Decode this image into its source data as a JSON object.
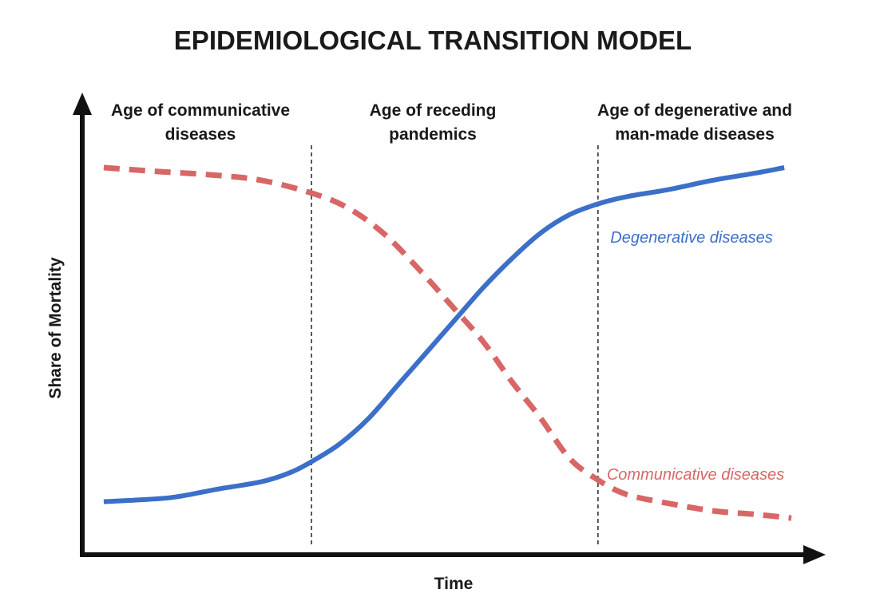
{
  "chart_data": {
    "type": "line",
    "title": "EPIDEMIOLOGICAL TRANSITION MODEL",
    "xlabel": "Time",
    "ylabel": "Share of Mortality",
    "xlim": [
      0,
      100
    ],
    "ylim": [
      0,
      100
    ],
    "grid": false,
    "legend": "inline",
    "phases": [
      {
        "label_lines": [
          "Age of communicative",
          "diseases"
        ],
        "x_start": 0,
        "x_end": 32
      },
      {
        "label_lines": [
          "Age of receding",
          "pandemics"
        ],
        "x_start": 32,
        "x_end": 72
      },
      {
        "label_lines": [
          "Age of degenerative and",
          "man-made diseases"
        ],
        "x_start": 72,
        "x_end": 100
      }
    ],
    "dividers_x": [
      32,
      72
    ],
    "series": [
      {
        "name": "Degenerative diseases",
        "color": "#3b6fc9",
        "style": "solid",
        "x": [
          3,
          8,
          13,
          19,
          25,
          29,
          32,
          36,
          40,
          44,
          48,
          52,
          56,
          60,
          64,
          68,
          72,
          76,
          82,
          88,
          94,
          98
        ],
        "y": [
          8,
          8.5,
          9.3,
          11.5,
          13.5,
          16,
          19,
          24,
          31,
          40,
          49,
          58,
          67,
          75,
          82,
          87,
          90,
          92,
          94,
          96.5,
          98.5,
          100
        ]
      },
      {
        "name": "Communicative diseases",
        "color": "#d96666",
        "style": "dashed",
        "x": [
          3,
          10,
          18,
          25,
          32,
          37,
          42,
          47,
          52,
          56,
          60,
          64,
          68,
          72,
          76,
          82,
          88,
          94,
          99
        ],
        "y": [
          100,
          99,
          98,
          96.5,
          93,
          89,
          82,
          72,
          61,
          52,
          41,
          31,
          20,
          14,
          10,
          7.5,
          5.5,
          4.5,
          3.5
        ]
      }
    ]
  }
}
